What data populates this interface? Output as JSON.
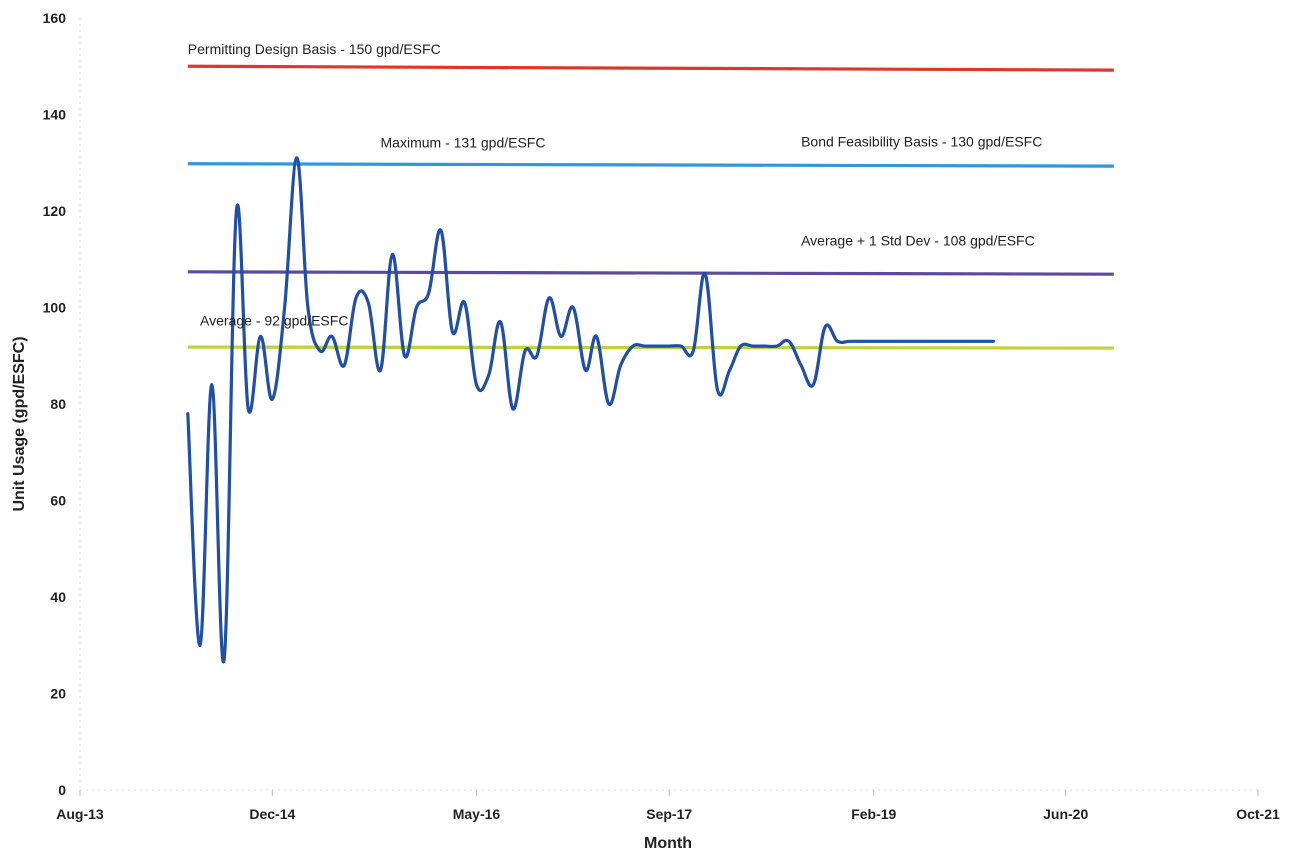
{
  "chart_data": {
    "type": "line",
    "xlabel": "Month",
    "ylabel": "Unit Usage (gpd/ESFC)",
    "ylim": [
      0,
      160
    ],
    "yticks": [
      0,
      20,
      40,
      60,
      80,
      100,
      120,
      140,
      160
    ],
    "xlim": [
      "2013-08-01",
      "2021-10-01"
    ],
    "xticks": [
      {
        "label": "Aug-13",
        "date": "2013-08-01"
      },
      {
        "label": "Dec-14",
        "date": "2014-12-01"
      },
      {
        "label": "May-16",
        "date": "2016-05-01"
      },
      {
        "label": "Sep-17",
        "date": "2017-09-01"
      },
      {
        "label": "Feb-19",
        "date": "2019-02-01"
      },
      {
        "label": "Jun-20",
        "date": "2020-06-01"
      },
      {
        "label": "Oct-21",
        "date": "2021-10-01"
      }
    ],
    "grid": false,
    "reference_lines": [
      {
        "label": "Permitting Design Basis - 150 gpd/ESFC",
        "y_start": 150,
        "y_end": 149.2,
        "x_start": "2014-05-01",
        "x_end": "2020-10-01",
        "color": "#d93a2b",
        "label_x": "2014-05-01",
        "label_y": 152.5,
        "label_anchor": "start"
      },
      {
        "label": "Maximum - 131 gpd/ESFC",
        "y_start": 129.8,
        "y_end": 129.3,
        "x_start": "2014-05-01",
        "x_end": "2020-10-01",
        "color": "#2f97dc",
        "label_x": "2015-09-01",
        "label_y": 133.2,
        "label_anchor": "start"
      },
      {
        "label": "Bond Feasibility Basis - 130 gpd/ESFC",
        "y_start": 129.8,
        "y_end": 129.3,
        "x_start": "2014-05-01",
        "x_end": "2020-10-01",
        "color": "#2f97dc",
        "label_x": "2018-08-01",
        "label_y": 133.4,
        "label_anchor": "start"
      },
      {
        "label": "Average + 1 Std Dev - 108 gpd/ESFC",
        "y_start": 107.4,
        "y_end": 106.9,
        "x_start": "2014-05-01",
        "x_end": "2020-10-01",
        "color": "#5b4b9e",
        "label_x": "2018-08-01",
        "label_y": 112.8,
        "label_anchor": "start"
      },
      {
        "label": "Average - 92 gpd/ESFC",
        "y_start": 91.8,
        "y_end": 91.6,
        "x_start": "2014-05-01",
        "x_end": "2020-10-01",
        "color": "#bed23b",
        "label_x": "2014-06-01",
        "label_y": 96.3,
        "label_anchor": "start"
      }
    ],
    "series": [
      {
        "color": "#1f4fa8",
        "x": [
          "2014-05-01",
          "2014-06-01",
          "2014-07-01",
          "2014-08-01",
          "2014-09-01",
          "2014-10-01",
          "2014-11-01",
          "2014-12-01",
          "2015-01-01",
          "2015-02-01",
          "2015-03-01",
          "2015-04-01",
          "2015-05-01",
          "2015-06-01",
          "2015-07-01",
          "2015-08-01",
          "2015-09-01",
          "2015-10-01",
          "2015-11-01",
          "2015-12-01",
          "2016-01-01",
          "2016-02-01",
          "2016-03-01",
          "2016-04-01",
          "2016-05-01",
          "2016-06-01",
          "2016-07-01",
          "2016-08-01",
          "2016-09-01",
          "2016-10-01",
          "2016-11-01",
          "2016-12-01",
          "2017-01-01",
          "2017-02-01",
          "2017-03-01",
          "2017-04-01",
          "2017-05-01",
          "2017-06-01",
          "2017-07-01",
          "2017-08-01",
          "2017-09-01",
          "2017-10-01",
          "2017-11-01",
          "2017-12-01",
          "2018-01-01",
          "2018-02-01",
          "2018-03-01",
          "2018-04-01",
          "2018-05-01",
          "2018-06-01",
          "2018-07-01",
          "2018-08-01",
          "2018-09-01",
          "2018-10-01",
          "2018-11-01",
          "2018-12-01",
          "2019-01-01",
          "2019-02-01",
          "2019-03-01",
          "2019-04-01",
          "2019-05-01",
          "2019-06-01",
          "2019-07-01",
          "2019-08-01",
          "2019-09-01",
          "2019-10-01",
          "2019-11-01",
          "2019-12-01"
        ],
        "values": [
          78,
          30,
          84,
          27,
          120,
          79,
          94,
          81,
          100,
          131,
          100,
          91,
          94,
          88,
          102,
          101,
          87,
          111,
          90,
          100,
          103,
          116,
          95,
          101,
          84,
          86,
          97,
          79,
          91,
          90,
          102,
          94,
          100,
          87,
          94,
          80,
          88,
          92,
          92,
          92,
          92,
          92,
          91,
          107,
          83,
          87,
          92,
          92,
          92,
          92,
          93,
          88,
          84,
          96,
          93,
          93,
          93,
          93,
          93,
          93,
          93,
          93,
          93,
          93,
          93,
          93,
          93,
          93
        ]
      }
    ]
  }
}
